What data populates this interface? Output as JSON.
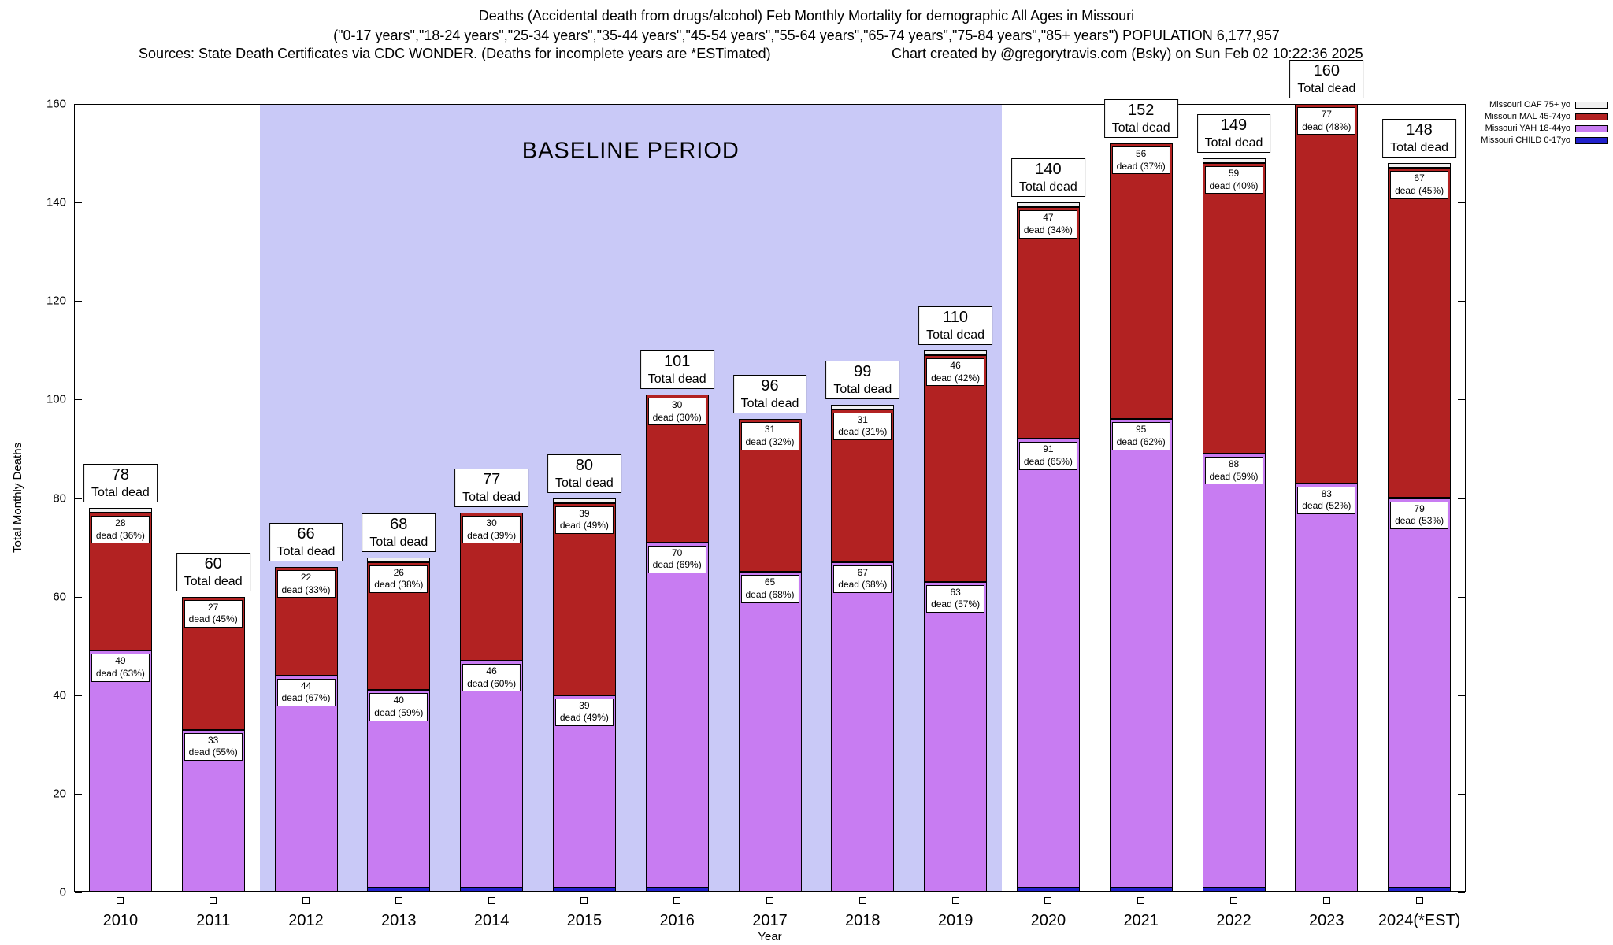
{
  "chart_data": {
    "type": "bar",
    "stacked": true,
    "title": "Deaths (Accidental death from drugs/alcohol) Feb Monthly Mortality for demographic All Ages in Missouri",
    "subtitle": "(\"0-17 years\",\"18-24 years\",\"25-34 years\",\"35-44 years\",\"45-54 years\",\"55-64 years\",\"65-74 years\",\"75-84 years\",\"85+ years\") POPULATION 6,177,957",
    "sources": "Sources: State Death Certificates via CDC WONDER. (Deaths for incomplete years are *ESTimated)",
    "credit": "Chart created by @gregorytravis.com (Bsky) on Sun Feb 02 10:22:36 2025",
    "xlabel": "Year",
    "ylabel": "Total Monthly Deaths",
    "ylim": [
      0,
      160
    ],
    "yticks": [
      0,
      20,
      40,
      60,
      80,
      100,
      120,
      140,
      160
    ],
    "grid": false,
    "legend_position": "top-right-outside",
    "baseline_region": {
      "label": "BASELINE PERIOD",
      "from_category": "2012",
      "to_category": "2019",
      "color": "#c9c9f7"
    },
    "categories": [
      "2010",
      "2011",
      "2012",
      "2013",
      "2014",
      "2015",
      "2016",
      "2017",
      "2018",
      "2019",
      "2020",
      "2021",
      "2022",
      "2023",
      "2024(*EST)"
    ],
    "series": [
      {
        "name": "Missouri CHILD 0-17yo",
        "key": "child-0-17",
        "color": "#2121cc",
        "values": [
          0,
          0,
          0,
          1,
          1,
          1,
          1,
          0,
          0,
          0,
          1,
          1,
          1,
          0,
          1
        ]
      },
      {
        "name": "Missouri YAH 18-44yo",
        "key": "yah-18-44",
        "color": "#c87cf2",
        "values": [
          49,
          33,
          44,
          40,
          46,
          39,
          70,
          65,
          67,
          63,
          91,
          95,
          88,
          83,
          79
        ]
      },
      {
        "name": "Missouri MAL 45-74yo",
        "key": "mal-45-74",
        "color": "#b22222",
        "values": [
          28,
          27,
          22,
          26,
          30,
          39,
          30,
          31,
          31,
          46,
          47,
          56,
          59,
          77,
          67
        ]
      },
      {
        "name": "Missouri OAF 75+ yo",
        "key": "oaf-75plus",
        "color": "#f0f0f0",
        "values": [
          1,
          0,
          0,
          1,
          0,
          1,
          0,
          0,
          1,
          1,
          1,
          0,
          1,
          0,
          1
        ]
      }
    ],
    "totals": [
      78,
      60,
      66,
      68,
      77,
      80,
      101,
      96,
      99,
      110,
      140,
      152,
      149,
      160,
      148
    ],
    "total_caption": "Total dead",
    "bar_labels": [
      {
        "total": "78",
        "yah": "49",
        "yah_caption": "dead (63%)",
        "mal": "28",
        "mal_caption": "dead (36%)"
      },
      {
        "total": "60",
        "yah": "33",
        "yah_caption": "dead (55%)",
        "mal": "27",
        "mal_caption": "dead (45%)"
      },
      {
        "total": "66",
        "yah": "44",
        "yah_caption": "dead (67%)",
        "mal": "22",
        "mal_caption": "dead (33%)"
      },
      {
        "total": "68",
        "yah": "40",
        "yah_caption": "dead (59%)",
        "mal": "26",
        "mal_caption": "dead (38%)"
      },
      {
        "total": "77",
        "yah": "46",
        "yah_caption": "dead (60%)",
        "mal": "30",
        "mal_caption": "dead (39%)"
      },
      {
        "total": "80",
        "yah": "39",
        "yah_caption": "dead (49%)",
        "mal": "39",
        "mal_caption": "dead (49%)"
      },
      {
        "total": "101",
        "yah": "70",
        "yah_caption": "dead (69%)",
        "mal": "30",
        "mal_caption": "dead (30%)"
      },
      {
        "total": "96",
        "yah": "65",
        "yah_caption": "dead (68%)",
        "mal": "31",
        "mal_caption": "dead (32%)"
      },
      {
        "total": "99",
        "yah": "67",
        "yah_caption": "dead (68%)",
        "mal": "31",
        "mal_caption": "dead (31%)"
      },
      {
        "total": "110",
        "yah": "63",
        "yah_caption": "dead (57%)",
        "mal": "46",
        "mal_caption": "dead (42%)"
      },
      {
        "total": "140",
        "yah": "91",
        "yah_caption": "dead (65%)",
        "mal": "47",
        "mal_caption": "dead (34%)"
      },
      {
        "total": "152",
        "yah": "95",
        "yah_caption": "dead (62%)",
        "mal": "56",
        "mal_caption": "dead (37%)"
      },
      {
        "total": "149",
        "yah": "88",
        "yah_caption": "dead (59%)",
        "mal": "59",
        "mal_caption": "dead (40%)"
      },
      {
        "total": "160",
        "yah": "83",
        "yah_caption": "dead (52%)",
        "mal": "77",
        "mal_caption": "dead (48%)"
      },
      {
        "total": "148",
        "yah": "79",
        "yah_caption": "dead (53%)",
        "mal": "67",
        "mal_caption": "dead (45%)"
      }
    ],
    "legend": [
      {
        "label": "Missouri OAF 75+ yo",
        "color": "#f0f0f0"
      },
      {
        "label": "Missouri MAL 45-74yo",
        "color": "#b22222"
      },
      {
        "label": "Missouri YAH 18-44yo",
        "color": "#c87cf2"
      },
      {
        "label": "Missouri CHILD 0-17yo",
        "color": "#2121cc"
      }
    ]
  }
}
